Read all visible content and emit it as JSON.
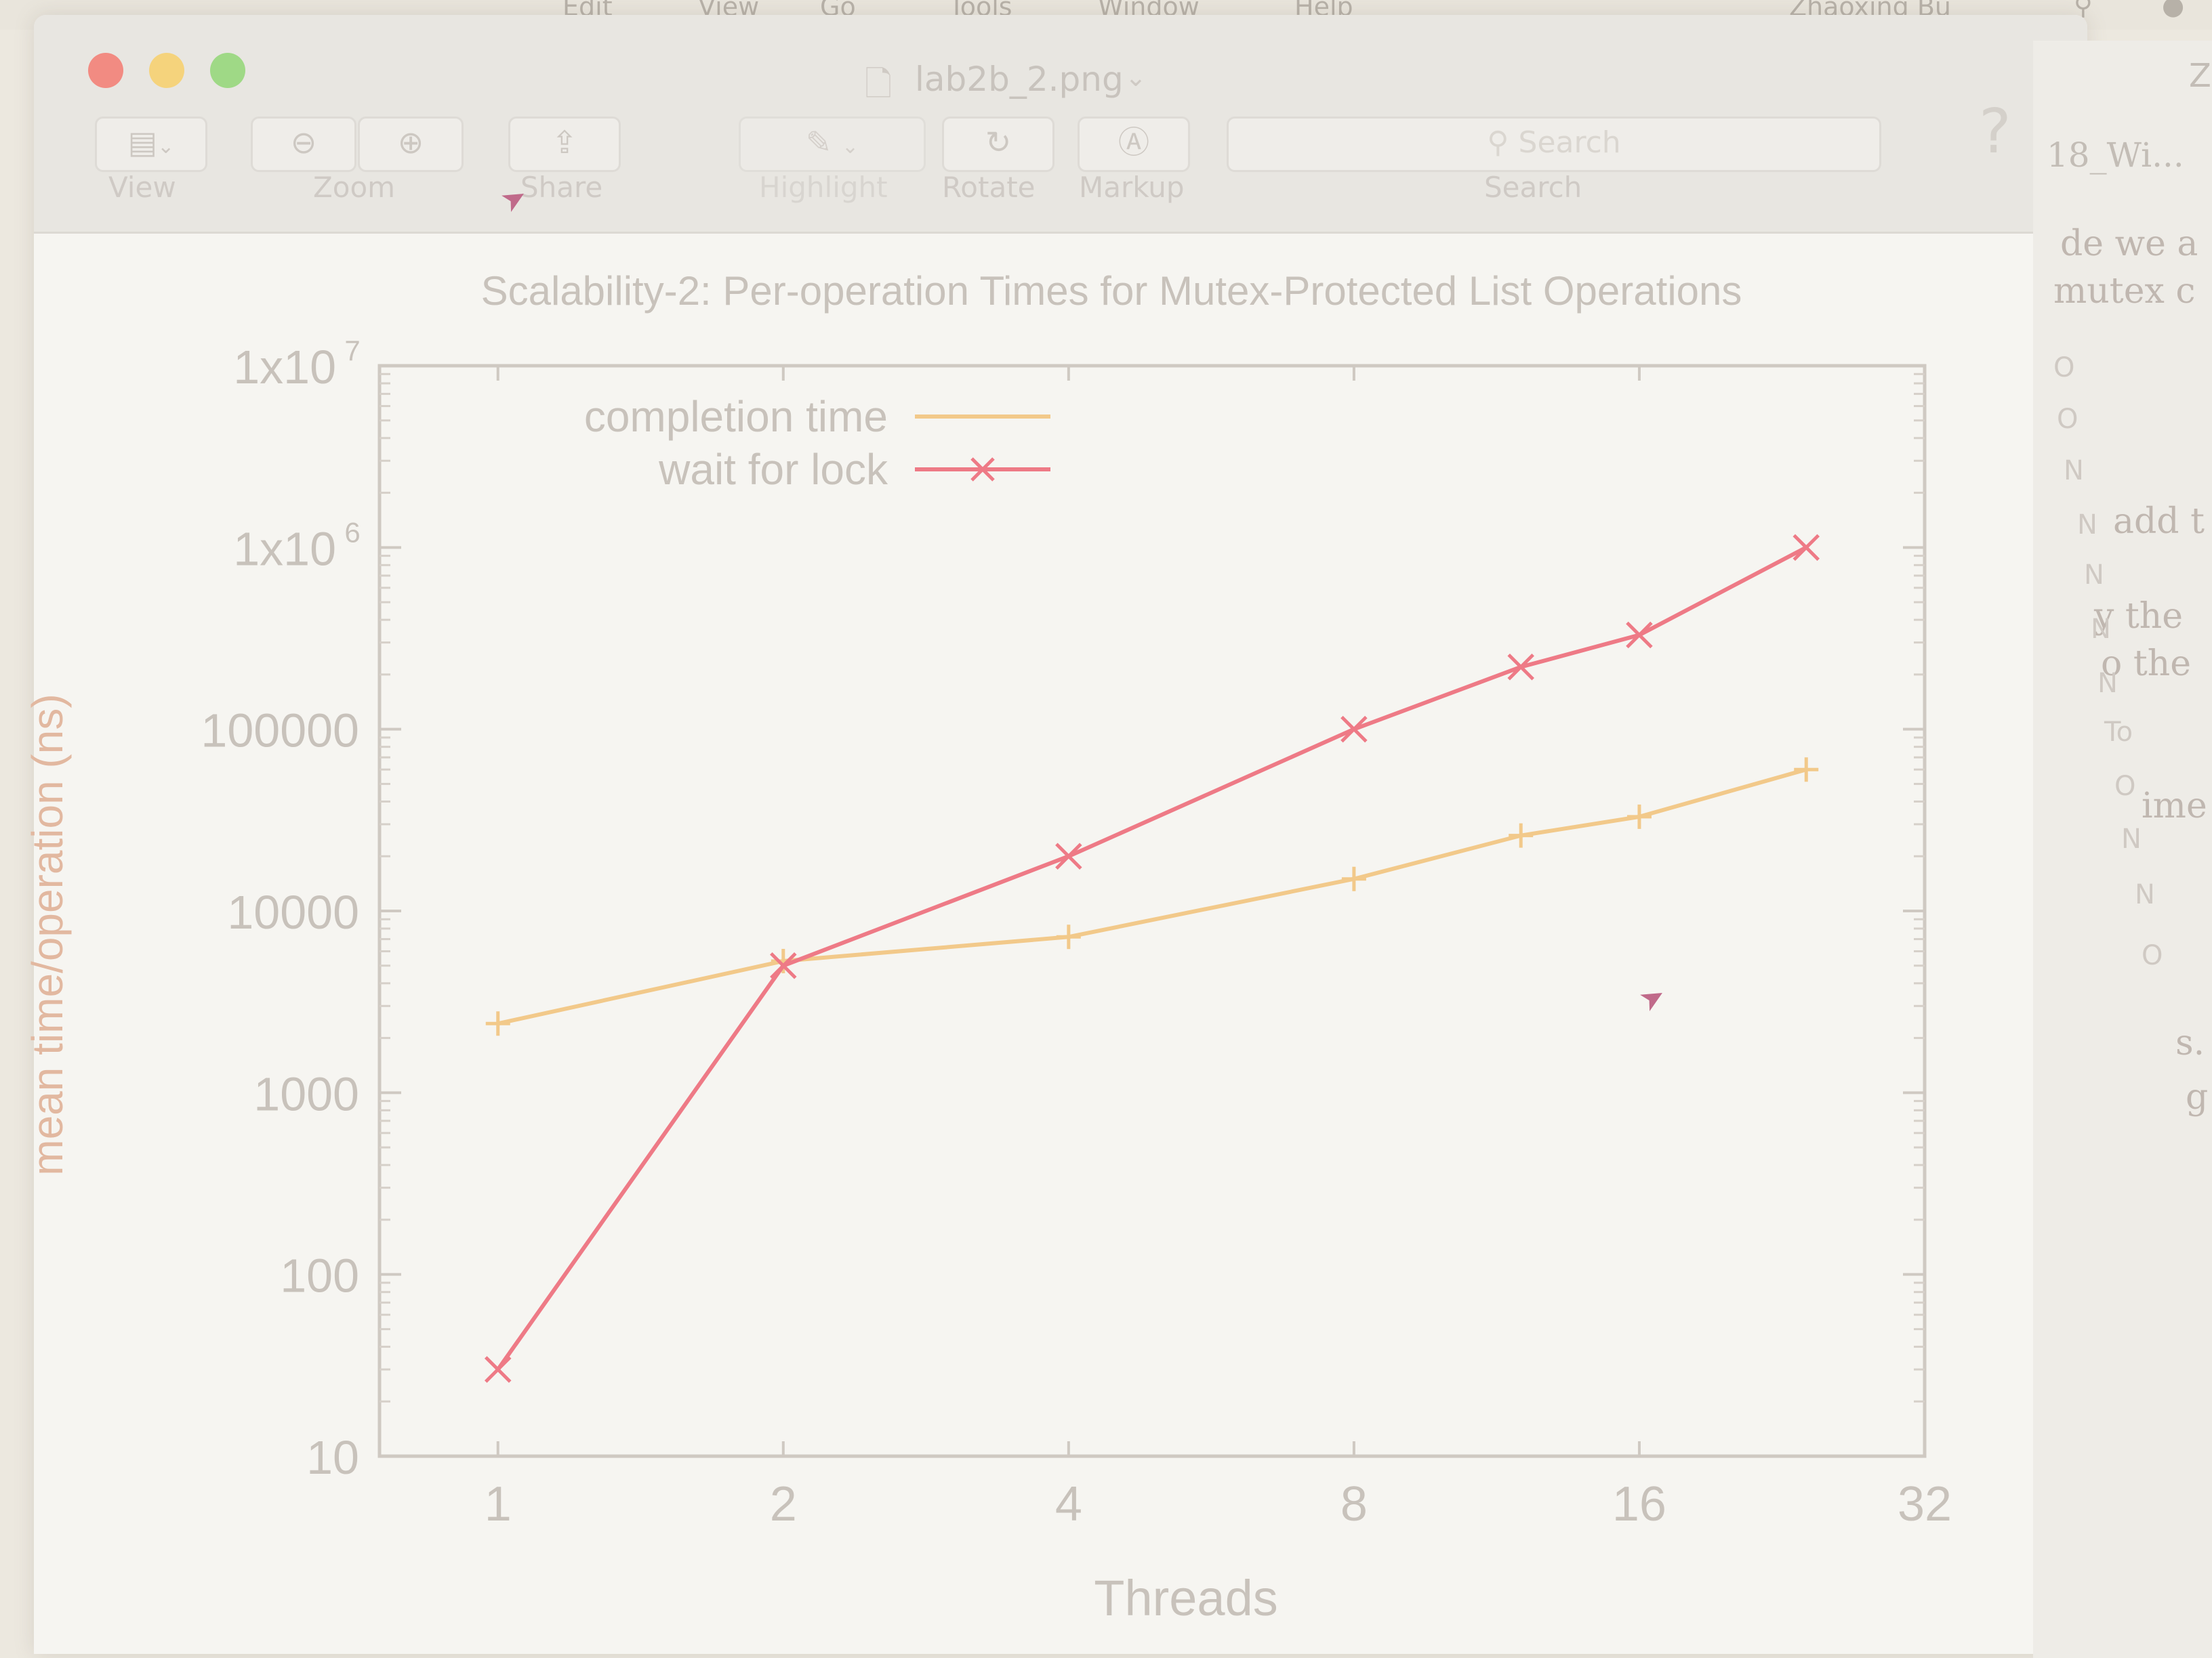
{
  "menubar": {
    "items": [
      "Edit",
      "View",
      "Go",
      "Tools",
      "Window",
      "Help"
    ],
    "user": "Zhaoxing Bu"
  },
  "window": {
    "title": "lab2b_2.png",
    "traffic_colors": [
      "#f28b82",
      "#f5d37c",
      "#9fd986"
    ]
  },
  "toolbar": {
    "view_label": "View",
    "zoom_label": "Zoom",
    "share_label": "Share",
    "highlight_label": "Highlight",
    "rotate_label": "Rotate",
    "markup_label": "Markup",
    "search_label": "Search",
    "search_placeholder": "Search",
    "help_symbol": "?"
  },
  "sidebar": {
    "tab_label": "18_Wi...",
    "top_letter": "Z",
    "lines": [
      "de we a",
      "mutex c",
      "add t",
      "y the",
      "o the",
      "ime",
      "s.",
      "g"
    ],
    "markers": [
      "O",
      "O",
      "N",
      "N",
      "N",
      "N",
      "N",
      "To",
      "O",
      "N",
      "N",
      "O"
    ]
  },
  "chart_data": {
    "type": "line",
    "title": "Scalability-2: Per-operation Times for Mutex-Protected List Operations",
    "xlabel": "Threads",
    "ylabel": "mean time/operation (ns)",
    "xscale": "log2",
    "yscale": "log10",
    "xlim": [
      0.75,
      32
    ],
    "ylim": [
      10,
      10000000
    ],
    "x_ticks": [
      "1",
      "2",
      "4",
      "8",
      "16",
      "32"
    ],
    "y_ticks": [
      "10",
      "100",
      "1000",
      "10000",
      "100000",
      "1x10",
      "1x10"
    ],
    "y_tick_exponents": [
      "",
      "",
      "",
      "",
      "",
      "6",
      "7"
    ],
    "legend_position": "top-left",
    "series": [
      {
        "name": "completion time",
        "color": "#f2c98a",
        "marker": "+",
        "x": [
          1,
          2,
          4,
          8,
          12,
          16,
          24
        ],
        "y": [
          2400,
          5300,
          7200,
          15000,
          26000,
          33000,
          60000
        ]
      },
      {
        "name": "wait for lock",
        "color": "#ee7a86",
        "marker": "x",
        "x": [
          1,
          2,
          4,
          8,
          12,
          16,
          24
        ],
        "y": [
          30,
          5000,
          20000,
          100000,
          220000,
          330000,
          1000000
        ]
      }
    ]
  }
}
